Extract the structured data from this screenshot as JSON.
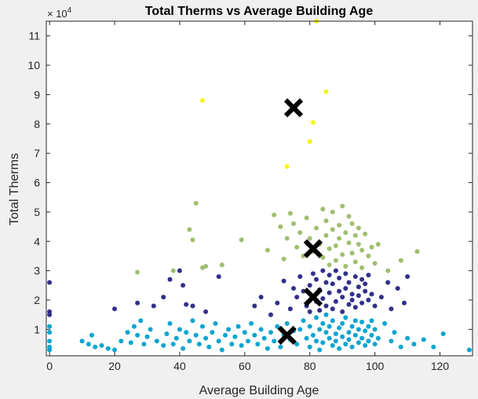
{
  "chart_data": {
    "type": "scatter",
    "title": "Total Therms vs Average Building Age",
    "xlabel": "Average Building Age",
    "ylabel": "Total Therms",
    "y_exponent_label": "× 10",
    "y_exponent_power": "4",
    "xlim": [
      -1,
      130
    ],
    "ylim": [
      1000,
      115000
    ],
    "xticks": [
      0,
      20,
      40,
      60,
      80,
      100,
      120
    ],
    "xtick_labels": [
      "0",
      "20",
      "40",
      "60",
      "80",
      "100",
      "120"
    ],
    "yticks": [
      10000,
      20000,
      30000,
      40000,
      50000,
      60000,
      70000,
      80000,
      90000,
      100000,
      110000
    ],
    "ytick_labels": [
      "1",
      "2",
      "3",
      "4",
      "5",
      "6",
      "7",
      "8",
      "9",
      "10",
      "11"
    ],
    "grid": false,
    "legend": "none",
    "series": [
      {
        "color": "#0ca5d0",
        "points": [
          [
            0,
            4000
          ],
          [
            0,
            6000
          ],
          [
            0,
            9000
          ],
          [
            0,
            11000
          ],
          [
            0,
            3000
          ],
          [
            10,
            6000
          ],
          [
            12,
            5000
          ],
          [
            13,
            8000
          ],
          [
            14,
            4000
          ],
          [
            16,
            4500
          ],
          [
            18,
            3500
          ],
          [
            20,
            3000
          ],
          [
            22,
            6000
          ],
          [
            24,
            9000
          ],
          [
            25,
            5500
          ],
          [
            26,
            11000
          ],
          [
            27,
            8000
          ],
          [
            28,
            13000
          ],
          [
            29,
            5000
          ],
          [
            30,
            7500
          ],
          [
            31,
            10000
          ],
          [
            33,
            6000
          ],
          [
            35,
            4500
          ],
          [
            36,
            8500
          ],
          [
            37,
            12000
          ],
          [
            38,
            5000
          ],
          [
            39,
            7000
          ],
          [
            40,
            10000
          ],
          [
            41,
            3500
          ],
          [
            42,
            9000
          ],
          [
            43,
            6000
          ],
          [
            44,
            13000
          ],
          [
            45,
            8000
          ],
          [
            46,
            5000
          ],
          [
            47,
            11000
          ],
          [
            48,
            7000
          ],
          [
            49,
            4000
          ],
          [
            50,
            9000
          ],
          [
            51,
            12000
          ],
          [
            52,
            6000
          ],
          [
            53,
            3000
          ],
          [
            54,
            8000
          ],
          [
            55,
            10000
          ],
          [
            56,
            5000
          ],
          [
            57,
            7500
          ],
          [
            58,
            11000
          ],
          [
            59,
            4500
          ],
          [
            60,
            9000
          ],
          [
            61,
            6000
          ],
          [
            62,
            12000
          ],
          [
            63,
            8000
          ],
          [
            64,
            5000
          ],
          [
            65,
            10000
          ],
          [
            66,
            7000
          ],
          [
            67,
            3500
          ],
          [
            68,
            9000
          ],
          [
            69,
            6000
          ],
          [
            70,
            11000
          ],
          [
            71,
            4000
          ],
          [
            72,
            8000
          ],
          [
            73,
            12000
          ],
          [
            74,
            6500
          ],
          [
            75,
            9500
          ],
          [
            76,
            5000
          ],
          [
            77,
            10000
          ],
          [
            78,
            13000
          ],
          [
            79,
            7000
          ],
          [
            80,
            11000
          ],
          [
            80,
            4000
          ],
          [
            81,
            8000
          ],
          [
            82,
            14000
          ],
          [
            82,
            6000
          ],
          [
            83,
            10000
          ],
          [
            83,
            3000
          ],
          [
            84,
            12000
          ],
          [
            84,
            5500
          ],
          [
            85,
            9000
          ],
          [
            85,
            15000
          ],
          [
            86,
            7000
          ],
          [
            86,
            11000
          ],
          [
            87,
            4500
          ],
          [
            87,
            13000
          ],
          [
            88,
            8500
          ],
          [
            88,
            6000
          ],
          [
            89,
            10500
          ],
          [
            89,
            3500
          ],
          [
            90,
            12000
          ],
          [
            90,
            7500
          ],
          [
            91,
            5000
          ],
          [
            91,
            14000
          ],
          [
            92,
            9000
          ],
          [
            92,
            6500
          ],
          [
            93,
            11000
          ],
          [
            93,
            4000
          ],
          [
            94,
            13000
          ],
          [
            94,
            8000
          ],
          [
            95,
            10000
          ],
          [
            95,
            5500
          ],
          [
            96,
            12500
          ],
          [
            96,
            7000
          ],
          [
            97,
            9500
          ],
          [
            97,
            4500
          ],
          [
            98,
            11000
          ],
          [
            98,
            6000
          ],
          [
            99,
            13000
          ],
          [
            99,
            8000
          ],
          [
            100,
            10000
          ],
          [
            100,
            5000
          ],
          [
            101,
            7000
          ],
          [
            103,
            12000
          ],
          [
            105,
            6000
          ],
          [
            106,
            9000
          ],
          [
            108,
            4000
          ],
          [
            110,
            7000
          ],
          [
            112,
            5000
          ],
          [
            115,
            6500
          ],
          [
            118,
            4000
          ],
          [
            121,
            8500
          ],
          [
            129,
            3000
          ]
        ]
      },
      {
        "color": "#332f8a",
        "points": [
          [
            0,
            26000
          ],
          [
            0,
            16000
          ],
          [
            0,
            15000
          ],
          [
            20,
            17000
          ],
          [
            27,
            19000
          ],
          [
            32,
            18000
          ],
          [
            35,
            21000
          ],
          [
            37,
            27000
          ],
          [
            40,
            30000
          ],
          [
            41,
            25000
          ],
          [
            42,
            18500
          ],
          [
            44,
            18000
          ],
          [
            48,
            16000
          ],
          [
            52,
            28000
          ],
          [
            63,
            18000
          ],
          [
            65,
            21000
          ],
          [
            68,
            15000
          ],
          [
            70,
            19000
          ],
          [
            72,
            26500
          ],
          [
            74,
            17000
          ],
          [
            75,
            24000
          ],
          [
            76,
            21000
          ],
          [
            77,
            28000
          ],
          [
            78,
            23000
          ],
          [
            79,
            18000
          ],
          [
            80,
            25000
          ],
          [
            80,
            16000
          ],
          [
            81,
            29000
          ],
          [
            81,
            21000
          ],
          [
            82,
            19500
          ],
          [
            82,
            27000
          ],
          [
            83,
            23500
          ],
          [
            83,
            16500
          ],
          [
            84,
            30000
          ],
          [
            84,
            20500
          ],
          [
            85,
            26000
          ],
          [
            85,
            18000
          ],
          [
            86,
            28500
          ],
          [
            86,
            22500
          ],
          [
            87,
            17000
          ],
          [
            87,
            25500
          ],
          [
            88,
            30000
          ],
          [
            88,
            19500
          ],
          [
            89,
            23000
          ],
          [
            89,
            27500
          ],
          [
            90,
            21000
          ],
          [
            90,
            16000
          ],
          [
            91,
            29000
          ],
          [
            91,
            24000
          ],
          [
            92,
            18500
          ],
          [
            92,
            26000
          ],
          [
            93,
            22000
          ],
          [
            93,
            20000
          ],
          [
            94,
            28000
          ],
          [
            94,
            17500
          ],
          [
            95,
            24500
          ],
          [
            95,
            21500
          ],
          [
            96,
            27000
          ],
          [
            96,
            19000
          ],
          [
            97,
            23000
          ],
          [
            97,
            25500
          ],
          [
            98,
            20000
          ],
          [
            98,
            28500
          ],
          [
            99,
            22000
          ],
          [
            100,
            18000
          ],
          [
            102,
            21000
          ],
          [
            104,
            26000
          ],
          [
            105,
            17000
          ],
          [
            107,
            24000
          ],
          [
            109,
            19000
          ],
          [
            110,
            28000
          ]
        ]
      },
      {
        "color": "#a0be6f",
        "points": [
          [
            27,
            29500
          ],
          [
            38,
            30000
          ],
          [
            43,
            44000
          ],
          [
            44,
            40500
          ],
          [
            45,
            53000
          ],
          [
            47,
            31000
          ],
          [
            48,
            31500
          ],
          [
            53,
            32000
          ],
          [
            59,
            40500
          ],
          [
            67,
            37000
          ],
          [
            69,
            49000
          ],
          [
            71,
            45000
          ],
          [
            72,
            34000
          ],
          [
            73,
            41000
          ],
          [
            74,
            49500
          ],
          [
            75,
            46000
          ],
          [
            76,
            38000
          ],
          [
            77,
            43000
          ],
          [
            78,
            35000
          ],
          [
            79,
            48000
          ],
          [
            80,
            41000
          ],
          [
            81,
            36500
          ],
          [
            82,
            44500
          ],
          [
            83,
            39000
          ],
          [
            84,
            51000
          ],
          [
            84,
            34500
          ],
          [
            85,
            42000
          ],
          [
            85,
            47000
          ],
          [
            86,
            37500
          ],
          [
            86,
            32000
          ],
          [
            87,
            44000
          ],
          [
            87,
            50000
          ],
          [
            88,
            38500
          ],
          [
            88,
            33500
          ],
          [
            89,
            45500
          ],
          [
            89,
            41000
          ],
          [
            90,
            52000
          ],
          [
            90,
            35500
          ],
          [
            91,
            43000
          ],
          [
            91,
            31500
          ],
          [
            92,
            48500
          ],
          [
            92,
            39500
          ],
          [
            93,
            36000
          ],
          [
            93,
            46000
          ],
          [
            94,
            42000
          ],
          [
            94,
            33000
          ],
          [
            95,
            39000
          ],
          [
            95,
            44500
          ],
          [
            96,
            37000
          ],
          [
            96,
            31000
          ],
          [
            97,
            42500
          ],
          [
            98,
            35000
          ],
          [
            99,
            38000
          ],
          [
            100,
            32500
          ],
          [
            101,
            39000
          ],
          [
            104,
            30000
          ],
          [
            108,
            33500
          ],
          [
            113,
            36500
          ]
        ]
      },
      {
        "color": "#f5f518",
        "points": [
          [
            47,
            88000
          ],
          [
            73,
            65500
          ],
          [
            80,
            74000
          ],
          [
            81,
            80500
          ],
          [
            82,
            115000
          ],
          [
            85,
            91000
          ]
        ]
      }
    ],
    "centroids": {
      "color": "#000000",
      "marker": "x",
      "points": [
        [
          75,
          85500
        ],
        [
          81,
          37500
        ],
        [
          81,
          21000
        ],
        [
          73,
          8000
        ]
      ]
    }
  }
}
